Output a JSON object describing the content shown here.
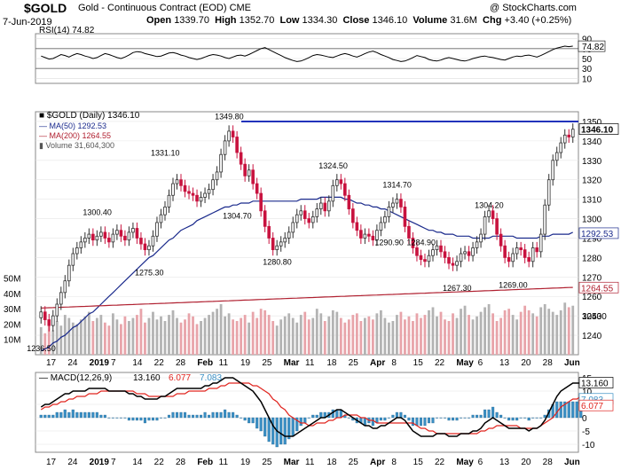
{
  "header": {
    "symbol": "$GOLD",
    "name": "Gold - Continuous Contract (EOD)",
    "exchange": "CME",
    "date": "7-Jun-2019",
    "source": "@ StockCharts.com",
    "open_label": "Open",
    "open": "1339.70",
    "high_label": "High",
    "high": "1352.70",
    "low_label": "Low",
    "low": "1334.30",
    "close_label": "Close",
    "close": "1346.10",
    "volume_label": "Volume",
    "volume": "31.6M",
    "chg_label": "Chg",
    "chg": "+3.40 (+0.25%)"
  },
  "colors": {
    "up": "#2f2f2f",
    "down": "#c8123e",
    "ma50": "#1a2a8c",
    "ma200": "#b02030",
    "vol_up": "#b3b3b3",
    "vol_down": "#e8a4aa",
    "macd_hist": "#3a8fc4",
    "macd": "#000000",
    "signal": "#e0241e",
    "resistance": "#2233bb"
  },
  "chart_data": [
    {
      "type": "line",
      "panel": "rsi",
      "legend": "RSI(14) 74.82",
      "ylim": [
        0,
        100
      ],
      "ticks": [
        10,
        30,
        50,
        70,
        90
      ],
      "overbought": 70,
      "oversold": 30,
      "last_label": "74.82",
      "values": [
        55,
        52,
        49,
        50,
        54,
        58,
        56,
        53,
        57,
        60,
        58,
        55,
        53,
        50,
        52,
        56,
        60,
        58,
        55,
        52,
        50,
        53,
        57,
        62,
        64,
        63,
        60,
        58,
        56,
        54,
        55,
        58,
        61,
        62,
        60,
        57,
        55,
        52,
        50,
        48,
        50,
        53,
        56,
        58,
        57,
        55,
        52,
        50,
        53,
        56,
        57,
        55,
        58,
        62,
        66,
        70,
        72,
        68,
        64,
        60,
        56,
        52,
        49,
        46,
        44,
        45,
        48,
        52,
        56,
        58,
        57,
        55,
        53,
        52,
        55,
        58,
        60,
        58,
        55,
        53,
        56,
        60,
        63,
        65,
        62,
        58,
        55,
        52,
        48,
        46,
        44,
        45,
        48,
        52,
        56,
        54,
        52,
        48,
        46,
        45,
        47,
        50,
        52,
        50,
        48,
        46,
        45,
        47,
        50,
        52,
        54,
        55,
        53,
        52,
        50,
        48,
        47,
        50,
        53,
        55,
        54,
        56,
        57,
        55,
        53,
        56,
        60,
        64,
        68,
        71,
        73,
        75,
        74,
        75
      ]
    },
    {
      "type": "candlestick",
      "panel": "price",
      "legend": [
        "$GOLD (Daily) 1346.10",
        "MA(50) 1292.53",
        "MA(200) 1264.55",
        "Volume 31,604,300"
      ],
      "ylim": [
        1230,
        1355
      ],
      "ticks": [
        1240,
        1250,
        1260,
        1270,
        1280,
        1290,
        1300,
        1310,
        1320,
        1330,
        1340,
        1350
      ],
      "x_tick_labels": [
        "17",
        "24",
        "2019",
        "7",
        "14",
        "22",
        "28",
        "Feb",
        "11",
        "19",
        "25",
        "Mar",
        "11",
        "18",
        "25",
        "Apr",
        "8",
        "15",
        "22",
        "May",
        "6",
        "13",
        "20",
        "28",
        "Jun"
      ],
      "right_value_labels": [
        "1346.10",
        "1292.53",
        "1264.55"
      ],
      "annotations": [
        "1349.80",
        "1331.10",
        "1304.70",
        "1300.40",
        "1275.30",
        "1280.80",
        "1324.50",
        "1314.70",
        "1284.90",
        "1290.90",
        "1267.30",
        "1304.20",
        "1269.00",
        "1236.50"
      ],
      "resistance_level": 1350,
      "close": [
        1252,
        1248,
        1245,
        1250,
        1256,
        1262,
        1268,
        1276,
        1282,
        1285,
        1288,
        1290,
        1292,
        1289,
        1291,
        1293,
        1290,
        1288,
        1292,
        1294,
        1291,
        1289,
        1293,
        1295,
        1290,
        1287,
        1284,
        1286,
        1291,
        1298,
        1302,
        1306,
        1312,
        1318,
        1320,
        1317,
        1314,
        1313,
        1312,
        1309,
        1311,
        1313,
        1315,
        1320,
        1324,
        1333,
        1340,
        1345,
        1342,
        1334,
        1328,
        1322,
        1325,
        1318,
        1313,
        1304,
        1296,
        1290,
        1284,
        1286,
        1288,
        1290,
        1293,
        1298,
        1302,
        1304,
        1300,
        1298,
        1301,
        1305,
        1308,
        1304,
        1309,
        1317,
        1320,
        1318,
        1312,
        1305,
        1298,
        1294,
        1290,
        1292,
        1291,
        1289,
        1294,
        1298,
        1301,
        1306,
        1308,
        1310,
        1306,
        1296,
        1290,
        1285,
        1281,
        1279,
        1278,
        1281,
        1284,
        1286,
        1283,
        1280,
        1277,
        1276,
        1278,
        1282,
        1283,
        1281,
        1285,
        1288,
        1292,
        1301,
        1304,
        1300,
        1292,
        1286,
        1280,
        1278,
        1282,
        1285,
        1284,
        1280,
        1278,
        1285,
        1283,
        1292,
        1307,
        1320,
        1330,
        1334,
        1339,
        1343,
        1342,
        1346
      ],
      "ma50": [
        1232,
        1233,
        1234,
        1236,
        1237,
        1239,
        1240,
        1242,
        1244,
        1245,
        1247,
        1249,
        1251,
        1252,
        1254,
        1256,
        1258,
        1260,
        1262,
        1264,
        1266,
        1268,
        1270,
        1272,
        1274,
        1276,
        1278,
        1280,
        1281,
        1283,
        1285,
        1287,
        1289,
        1290,
        1292,
        1294,
        1295,
        1296,
        1297,
        1299,
        1300,
        1301,
        1302,
        1303,
        1304,
        1305,
        1306,
        1306,
        1307,
        1307,
        1308,
        1308,
        1308,
        1309,
        1309,
        1309,
        1309,
        1309,
        1309,
        1309,
        1309,
        1309,
        1309,
        1309,
        1309,
        1310,
        1310,
        1310,
        1310,
        1310,
        1311,
        1311,
        1311,
        1311,
        1311,
        1311,
        1310,
        1310,
        1309,
        1308,
        1308,
        1307,
        1307,
        1306,
        1306,
        1305,
        1305,
        1304,
        1303,
        1302,
        1301,
        1300,
        1299,
        1298,
        1297,
        1296,
        1295,
        1294,
        1294,
        1293,
        1293,
        1292,
        1292,
        1292,
        1291,
        1291,
        1291,
        1291,
        1290,
        1290,
        1290,
        1290,
        1290,
        1291,
        1291,
        1291,
        1291,
        1291,
        1291,
        1290,
        1290,
        1290,
        1290,
        1290,
        1290,
        1291,
        1291,
        1291,
        1292,
        1292,
        1292,
        1292,
        1292,
        1293
      ]
    },
    {
      "type": "bar",
      "panel": "volume",
      "ticks": [
        "10M",
        "20M",
        "30M",
        "40M",
        "50M"
      ],
      "last_label": "30430",
      "values_m": [
        18,
        14,
        20,
        16,
        22,
        19,
        26,
        24,
        21,
        20,
        23,
        25,
        28,
        22,
        24,
        26,
        21,
        19,
        27,
        23,
        20,
        25,
        22,
        24,
        26,
        30,
        21,
        24,
        28,
        23,
        25,
        22,
        26,
        29,
        24,
        21,
        23,
        27,
        25,
        20,
        22,
        24,
        26,
        28,
        30,
        33,
        25,
        27,
        23,
        22,
        24,
        26,
        21,
        28,
        24,
        30,
        29,
        26,
        22,
        19,
        23,
        25,
        27,
        24,
        21,
        26,
        28,
        23,
        24,
        30,
        27,
        22,
        25,
        29,
        28,
        24,
        21,
        23,
        26,
        27,
        22,
        24,
        25,
        23,
        27,
        29,
        24,
        21,
        22,
        26,
        28,
        23,
        25,
        22,
        27,
        24,
        26,
        29,
        31,
        25,
        28,
        23,
        22,
        27,
        24,
        30,
        32,
        26,
        23,
        25,
        28,
        31,
        33,
        27,
        22,
        24,
        29,
        30,
        26,
        23,
        28,
        32,
        29,
        27,
        25,
        31,
        33,
        30,
        28,
        26,
        29,
        34,
        31,
        32
      ]
    },
    {
      "type": "line",
      "panel": "macd",
      "legend": [
        "MACD(12,26,9)",
        "13.160",
        "6.077",
        "7.083"
      ],
      "ylim": [
        -13,
        17
      ],
      "ticks": [
        -10,
        -5,
        0,
        5,
        10,
        15
      ],
      "right_value_labels": [
        "13.160",
        "7.083",
        "6.077"
      ],
      "macd": [
        4,
        5,
        5,
        6,
        7,
        8,
        9,
        9,
        10,
        10,
        10,
        10,
        11,
        11,
        11,
        11,
        11,
        10,
        10,
        10,
        10,
        10,
        9,
        9,
        8,
        8,
        7,
        7,
        7,
        7,
        8,
        8,
        9,
        10,
        11,
        11,
        11,
        11,
        11,
        11,
        11,
        12,
        12,
        13,
        13,
        14,
        15,
        15,
        15,
        14,
        13,
        12,
        11,
        10,
        8,
        6,
        3,
        0,
        -3,
        -5,
        -6,
        -7,
        -7,
        -7,
        -6,
        -5,
        -4,
        -3,
        -2,
        -1,
        0,
        0,
        1,
        2,
        3,
        3,
        2,
        1,
        0,
        -1,
        -2,
        -3,
        -3,
        -4,
        -4,
        -3,
        -3,
        -2,
        -1,
        0,
        0,
        -1,
        -3,
        -5,
        -6,
        -7,
        -7,
        -7,
        -7,
        -6,
        -6,
        -6,
        -7,
        -7,
        -7,
        -6,
        -6,
        -6,
        -5,
        -5,
        -4,
        -2,
        -1,
        0,
        -1,
        -2,
        -3,
        -4,
        -4,
        -4,
        -4,
        -4,
        -5,
        -4,
        -4,
        -3,
        -1,
        2,
        5,
        8,
        10,
        11,
        12,
        13,
        13,
        13
      ],
      "signal": [
        3,
        4,
        4,
        5,
        5,
        6,
        6,
        7,
        7,
        8,
        8,
        8,
        9,
        9,
        9,
        10,
        10,
        10,
        10,
        10,
        10,
        10,
        10,
        10,
        9,
        9,
        9,
        8,
        8,
        8,
        8,
        8,
        8,
        8,
        9,
        9,
        9,
        10,
        10,
        10,
        10,
        10,
        11,
        11,
        11,
        12,
        12,
        13,
        13,
        13,
        13,
        13,
        13,
        12,
        12,
        11,
        10,
        9,
        7,
        6,
        4,
        3,
        1,
        0,
        -1,
        -2,
        -2,
        -3,
        -3,
        -2,
        -2,
        -2,
        -1,
        -1,
        0,
        0,
        1,
        1,
        1,
        1,
        0,
        0,
        -1,
        -1,
        -2,
        -2,
        -2,
        -2,
        -2,
        -2,
        -2,
        -2,
        -2,
        -2,
        -3,
        -4,
        -4,
        -5,
        -5,
        -6,
        -6,
        -6,
        -6,
        -6,
        -6,
        -6,
        -6,
        -6,
        -6,
        -6,
        -5,
        -5,
        -4,
        -4,
        -3,
        -3,
        -3,
        -3,
        -3,
        -3,
        -4,
        -4,
        -4,
        -4,
        -4,
        -3,
        -2,
        -1,
        0,
        2,
        4,
        5,
        6,
        7,
        7,
        8
      ],
      "x_tick_labels": [
        "17",
        "24",
        "2019",
        "7",
        "14",
        "22",
        "28",
        "Feb",
        "11",
        "19",
        "25",
        "Mar",
        "11",
        "18",
        "25",
        "Apr",
        "8",
        "15",
        "22",
        "May",
        "6",
        "13",
        "20",
        "28",
        "Jun"
      ]
    }
  ]
}
